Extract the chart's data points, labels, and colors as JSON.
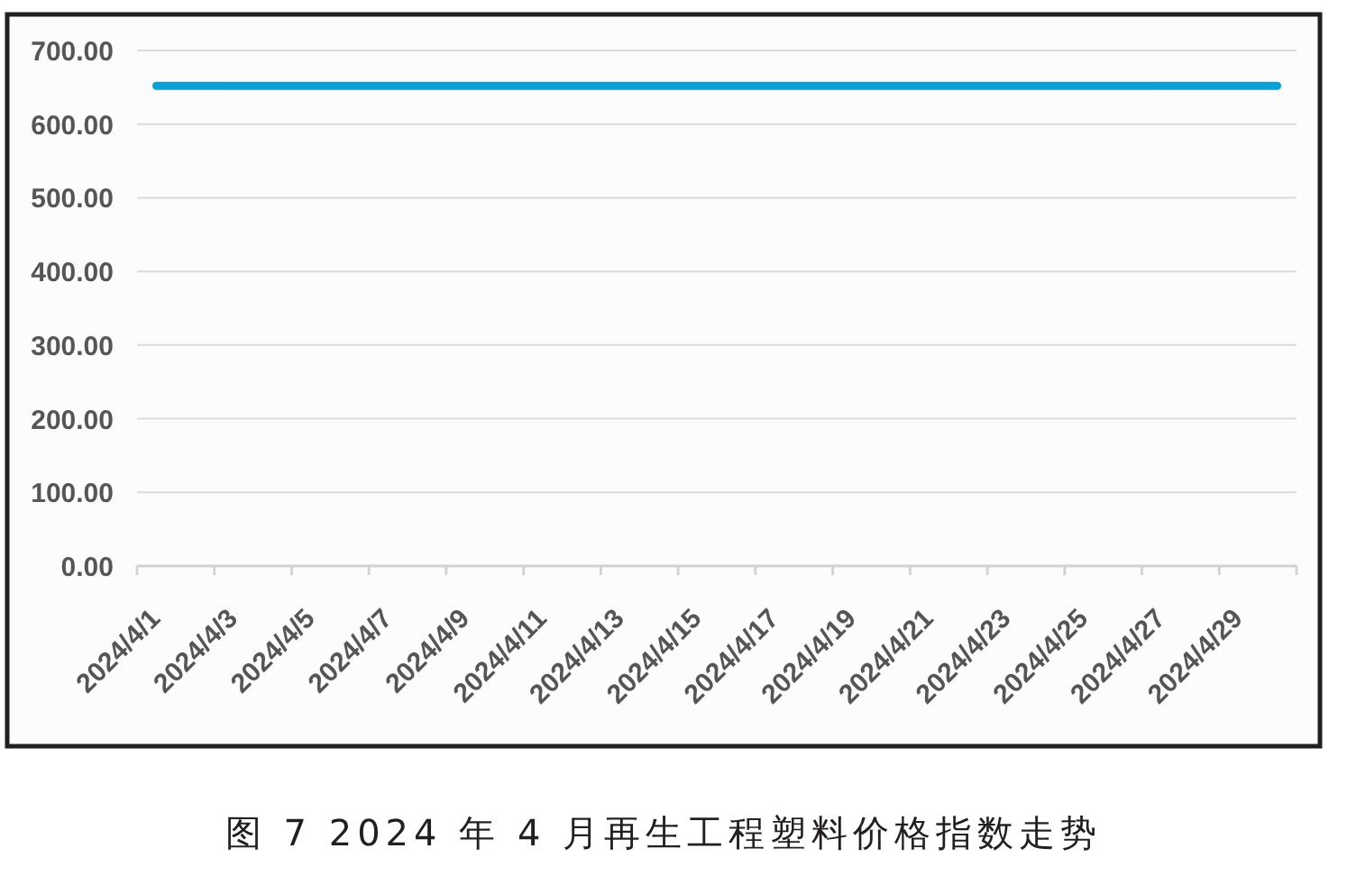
{
  "chart_data": {
    "type": "line",
    "title": "图 7 2024 年 4 月再生工程塑料价格指数走势",
    "categories": [
      "2024/4/1",
      null,
      "2024/4/3",
      null,
      "2024/4/5",
      null,
      "2024/4/7",
      null,
      "2024/4/9",
      null,
      "2024/4/11",
      null,
      "2024/4/13",
      null,
      "2024/4/15",
      null,
      "2024/4/17",
      null,
      "2024/4/19",
      null,
      "2024/4/21",
      null,
      "2024/4/23",
      null,
      "2024/4/25",
      null,
      "2024/4/27",
      null,
      "2024/4/29",
      null
    ],
    "values": [
      652,
      652,
      652,
      652,
      652,
      652,
      652,
      652,
      652,
      652,
      652,
      652,
      652,
      652,
      652,
      652,
      652,
      652,
      652,
      652,
      652,
      652,
      652,
      652,
      652,
      652,
      652,
      652,
      652,
      652
    ],
    "color": "#05a2d9",
    "ylim": [
      0,
      700
    ],
    "yticks": [
      {
        "value": 0,
        "label": "0.00"
      },
      {
        "value": 100,
        "label": "100.00"
      },
      {
        "value": 200,
        "label": "200.00"
      },
      {
        "value": 300,
        "label": "300.00"
      },
      {
        "value": 400,
        "label": "400.00"
      },
      {
        "value": 500,
        "label": "500.00"
      },
      {
        "value": 600,
        "label": "600.00"
      },
      {
        "value": 700,
        "label": "700.00"
      }
    ],
    "grid": "y"
  }
}
